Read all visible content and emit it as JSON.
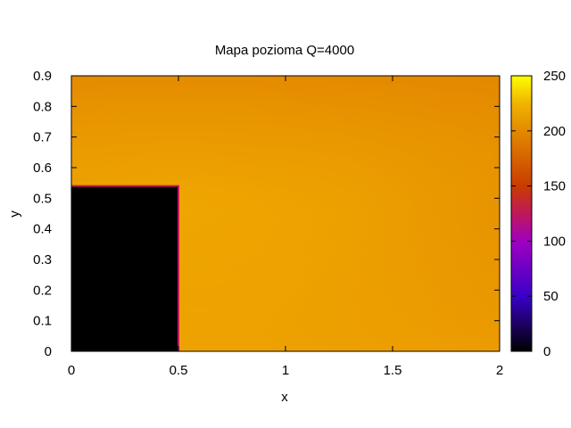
{
  "chart_data": {
    "type": "heatmap",
    "title": "Mapa pozioma Q=4000",
    "xlabel": "x",
    "ylabel": "y",
    "xlim": [
      0,
      2
    ],
    "ylim": [
      0,
      0.9
    ],
    "x_ticks": [
      {
        "value": 0,
        "label": "0"
      },
      {
        "value": 0.5,
        "label": "0.5"
      },
      {
        "value": 1,
        "label": "1"
      },
      {
        "value": 1.5,
        "label": "1.5"
      },
      {
        "value": 2,
        "label": "2"
      }
    ],
    "y_ticks": [
      {
        "value": 0,
        "label": "0"
      },
      {
        "value": 0.1,
        "label": "0.1"
      },
      {
        "value": 0.2,
        "label": "0.2"
      },
      {
        "value": 0.3,
        "label": "0.3"
      },
      {
        "value": 0.4,
        "label": "0.4"
      },
      {
        "value": 0.5,
        "label": "0.5"
      },
      {
        "value": 0.6,
        "label": "0.6"
      },
      {
        "value": 0.7,
        "label": "0.7"
      },
      {
        "value": 0.8,
        "label": "0.8"
      },
      {
        "value": 0.9,
        "label": "0.9"
      }
    ],
    "colorbar": {
      "range": [
        0,
        250
      ],
      "ticks": [
        {
          "value": 0,
          "label": "0"
        },
        {
          "value": 50,
          "label": "50"
        },
        {
          "value": 100,
          "label": "100"
        },
        {
          "value": 150,
          "label": "150"
        },
        {
          "value": 200,
          "label": "200"
        },
        {
          "value": 250,
          "label": "250"
        }
      ],
      "palette": [
        "#000000",
        "#8a00ff",
        "#c81e1e",
        "#e07a00",
        "#f0c000",
        "#ffff00"
      ]
    },
    "obstacle": {
      "x": [
        0,
        0.5
      ],
      "y": [
        0,
        0.54
      ],
      "value": 0,
      "edge_color": "#c0185a"
    },
    "field": {
      "min_value": 190,
      "max_value": 218,
      "description_values": {
        "top_right": 192,
        "bottom_right": 205,
        "near_corner": 218
      }
    }
  }
}
